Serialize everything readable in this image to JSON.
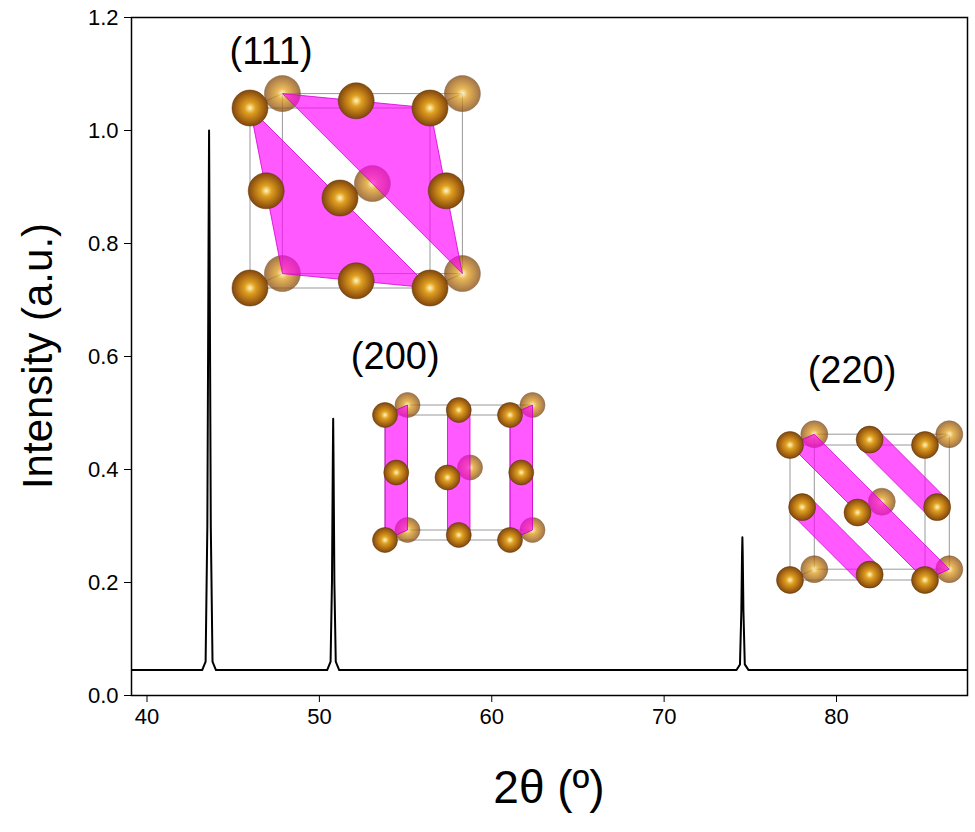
{
  "chart_data": {
    "type": "line",
    "x_label": "2θ (º)",
    "y_label": "Intensity (a.u.)",
    "xlim": [
      39.1,
      87.6
    ],
    "xticks": [
      40,
      50,
      60,
      70,
      80
    ],
    "ylim": [
      0,
      1.2
    ],
    "yticks": [
      {
        "value": 0,
        "label": "0.0"
      },
      {
        "value": 0.2,
        "label": "0.2"
      },
      {
        "value": 0.4,
        "label": "0.4"
      },
      {
        "value": 0.6,
        "label": "0.6"
      },
      {
        "value": 0.8,
        "label": "0.8"
      },
      {
        "value": 1.0,
        "label": "1.0"
      },
      {
        "value": 1.2,
        "label": "1.2"
      }
    ],
    "grid": false,
    "color": "#000000",
    "x": [
      39.1,
      43.2,
      43.4,
      43.5,
      43.57,
      43.6,
      43.63,
      43.7,
      43.8,
      44.0,
      50.45,
      50.65,
      50.73,
      50.78,
      50.8,
      50.82,
      50.87,
      50.95,
      51.15,
      74.2,
      74.4,
      74.48,
      74.52,
      74.54,
      74.56,
      74.6,
      74.68,
      74.9,
      87.6
    ],
    "values": [
      0.045,
      0.045,
      0.06,
      0.3,
      0.8,
      1.0,
      0.8,
      0.3,
      0.06,
      0.045,
      0.045,
      0.06,
      0.2,
      0.42,
      0.49,
      0.42,
      0.2,
      0.06,
      0.045,
      0.045,
      0.055,
      0.15,
      0.25,
      0.28,
      0.25,
      0.15,
      0.055,
      0.045,
      0.045
    ],
    "annotations": [
      {
        "text": "(111)",
        "x": 47.2,
        "y": 1.14
      },
      {
        "text": "(200)",
        "x": 54.4,
        "y": 0.6
      },
      {
        "text": "(220)",
        "x": 80.9,
        "y": 0.575
      }
    ]
  }
}
